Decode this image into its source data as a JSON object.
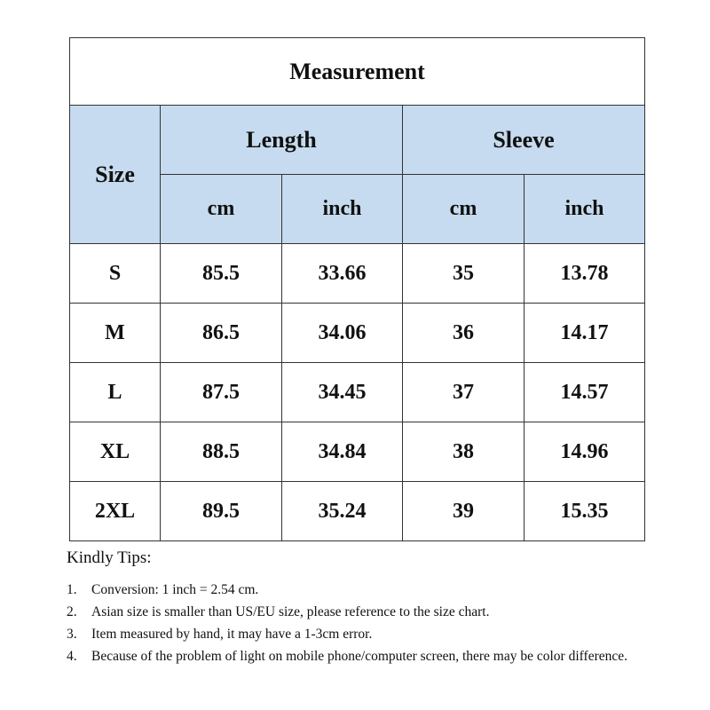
{
  "table": {
    "title": "Measurement",
    "header": {
      "size": "Size",
      "groups": [
        "Length",
        "Sleeve"
      ],
      "units": [
        "cm",
        "inch",
        "cm",
        "inch"
      ]
    },
    "rows": [
      [
        "S",
        "85.5",
        "33.66",
        "35",
        "13.78"
      ],
      [
        "M",
        "86.5",
        "34.06",
        "36",
        "14.17"
      ],
      [
        "L",
        "87.5",
        "34.45",
        "37",
        "14.57"
      ],
      [
        "XL",
        "88.5",
        "34.84",
        "38",
        "14.96"
      ],
      [
        "2XL",
        "89.5",
        "35.24",
        "39",
        "15.35"
      ]
    ]
  },
  "tips": {
    "heading": "Kindly Tips:",
    "items": [
      {
        "number": "1.",
        "text": "Conversion: 1 inch = 2.54 cm."
      },
      {
        "number": "2.",
        "text": "Asian size is smaller than US/EU size, please reference to the size chart."
      },
      {
        "number": "3.",
        "text": "Item measured by hand, it may have a 1-3cm error."
      },
      {
        "number": "4.",
        "text": "Because of the problem of light on mobile phone/computer screen, there may be color difference."
      }
    ]
  }
}
